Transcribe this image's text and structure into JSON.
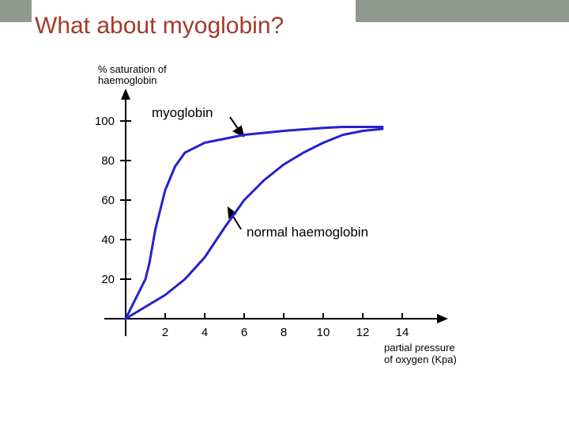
{
  "chart_data": {
    "type": "line",
    "title": "What about myoglobin?",
    "y_label": [
      "% saturation of",
      "haemoglobin"
    ],
    "x_label": [
      "partial pressure",
      "of oxygen (Kpa)"
    ],
    "xlim": [
      0,
      16
    ],
    "ylim": [
      0,
      114
    ],
    "xticks": [
      2,
      4,
      6,
      8,
      10,
      12,
      14
    ],
    "yticks": [
      20,
      40,
      60,
      80,
      100
    ],
    "series": [
      {
        "name": "myoglobin",
        "color": "#2323cc",
        "x": [
          0,
          0.5,
          1,
          1.2,
          1.5,
          2,
          2.5,
          3,
          4,
          5,
          6,
          8,
          10,
          11,
          13
        ],
        "values": [
          0,
          10,
          20,
          28,
          45,
          65,
          77,
          84,
          89,
          91,
          93,
          95,
          96.5,
          97,
          97
        ]
      },
      {
        "name": "normal haemoglobin",
        "color": "#2323cc",
        "x": [
          0,
          1,
          2,
          3,
          4,
          5,
          6,
          7,
          8,
          9,
          10,
          11,
          12,
          13
        ],
        "values": [
          0,
          6,
          12,
          20,
          31,
          46,
          60,
          70,
          78,
          84,
          89,
          93,
          95,
          96
        ]
      }
    ]
  }
}
